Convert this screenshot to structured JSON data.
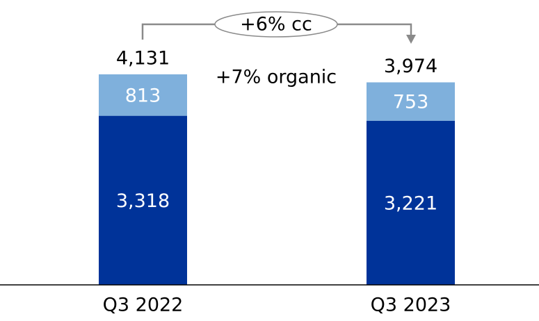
{
  "chart_data": {
    "type": "stacked_bar",
    "categories": [
      "Q3 2022",
      "Q3 2023"
    ],
    "series": [
      {
        "color": "#003399",
        "values": [
          3318,
          3221
        ],
        "value_labels": [
          "3,318",
          "3,221"
        ]
      },
      {
        "color": "#7fb0dc",
        "values": [
          813,
          753
        ],
        "value_labels": [
          "813",
          "753"
        ]
      }
    ],
    "totals": [
      4131,
      3974
    ],
    "total_labels": [
      "4,131",
      "3,974"
    ],
    "annotations": [
      "+6% cc",
      "+7% organic"
    ]
  }
}
